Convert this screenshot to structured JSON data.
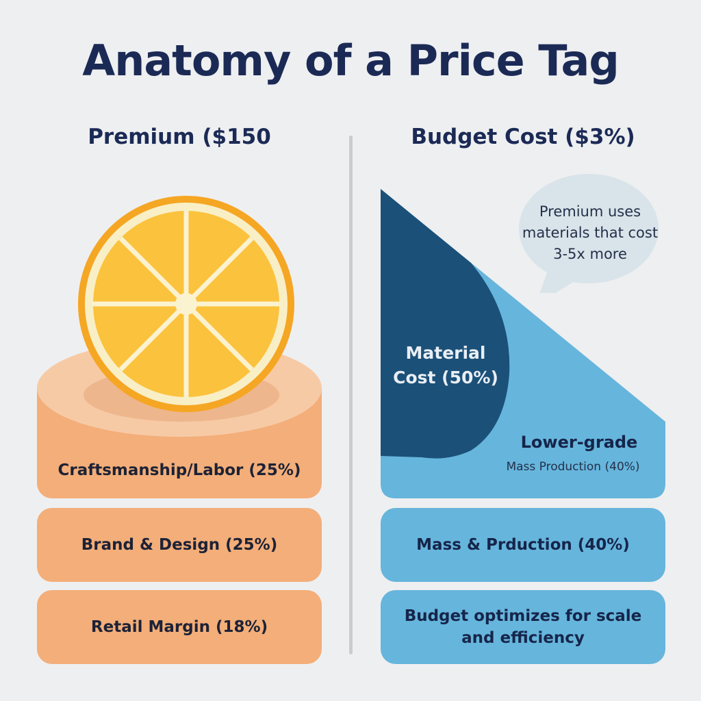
{
  "title": "Anatomy of a Price Tag",
  "left": {
    "heading": "Premium ($150",
    "sections": [
      {
        "label": "Craftsmanship/Labor (25%)"
      },
      {
        "label": "Brand & Design (25%)"
      },
      {
        "label": "Retail Margin (18%)"
      }
    ],
    "icon": "orange-slice-icon"
  },
  "right": {
    "heading": "Budget Cost ($3%)",
    "callout": "Premium uses materials that cost 3-5x more",
    "material_label": "Material Cost (50%)",
    "lower_grade_title": "Lower-grade",
    "lower_grade_sub": "Mass Production (40%)",
    "sections": [
      {
        "label": "Mass & Prduction (40%)"
      },
      {
        "label": "Budget optimizes for scale and efficiency"
      }
    ]
  },
  "colors": {
    "premium": "#f3ae79",
    "budget": "#66b5dc",
    "material": "#1b5078",
    "title": "#1b2a55"
  }
}
